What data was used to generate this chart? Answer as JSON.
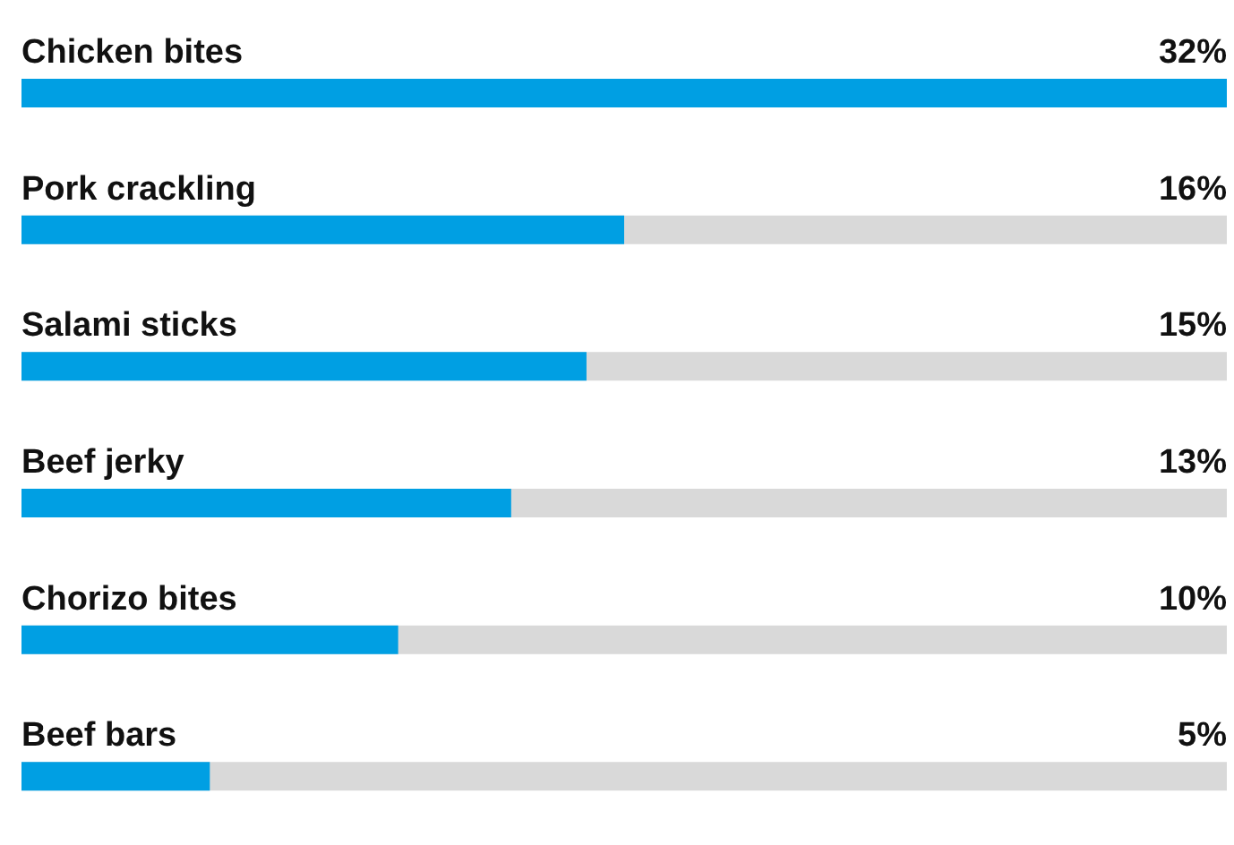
{
  "chart_data": {
    "type": "bar",
    "orientation": "horizontal",
    "categories": [
      "Chicken bites",
      "Pork crackling",
      "Salami sticks",
      "Beef jerky",
      "Chorizo bites",
      "Beef bars"
    ],
    "values": [
      32,
      16,
      15,
      13,
      10,
      5
    ],
    "value_labels": [
      "32%",
      "16%",
      "15%",
      "13%",
      "10%",
      "5%"
    ],
    "color": "#009fe3",
    "tick_labels": false
  }
}
